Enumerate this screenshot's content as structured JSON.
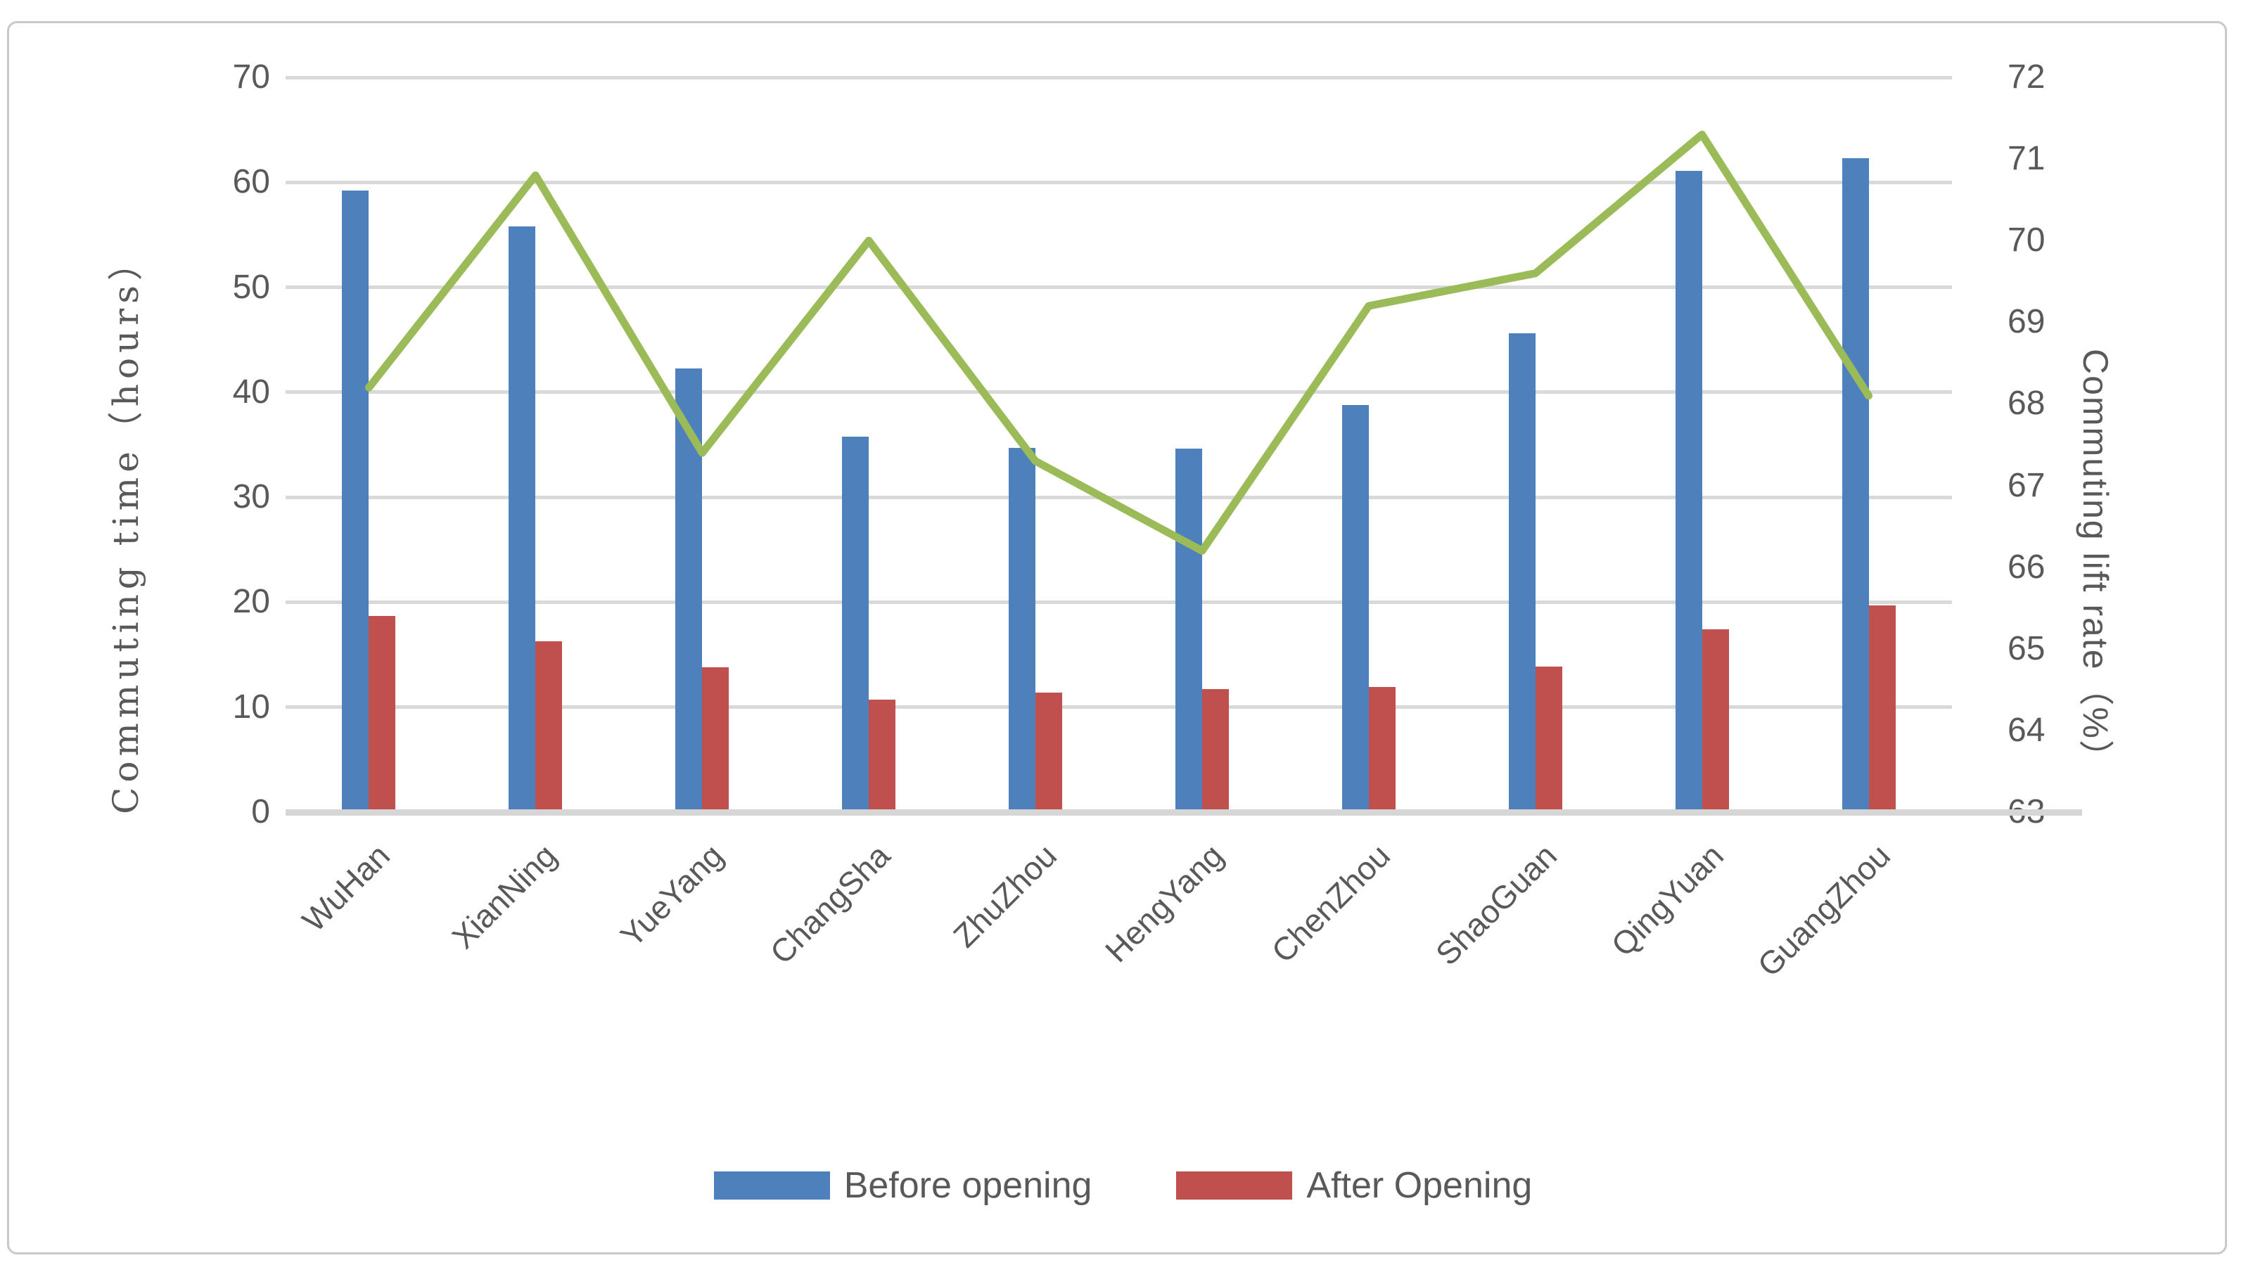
{
  "chart_data": {
    "type": "bar+line",
    "title": "",
    "categories": [
      "WuHan",
      "XianNing",
      "YueYang",
      "ChangSha",
      "ZhuZhou",
      "HengYang",
      "ChenZhou",
      "ShaoGuan",
      "QingYuan",
      "GuangZhou"
    ],
    "series": [
      {
        "name": "Before opening",
        "chart": "bar",
        "axis": "left",
        "color": "#4e81bc",
        "values": [
          59.2,
          55.8,
          42.3,
          35.8,
          34.7,
          34.6,
          38.8,
          45.6,
          61.1,
          62.3
        ]
      },
      {
        "name": "After Opening",
        "chart": "bar",
        "axis": "left",
        "color": "#c0504d",
        "values": [
          18.7,
          16.3,
          13.8,
          10.7,
          11.4,
          11.7,
          11.9,
          13.9,
          17.4,
          19.7
        ]
      },
      {
        "name": "Commuting lift rate",
        "chart": "line",
        "axis": "right",
        "color": "#9bbb59",
        "in_legend": false,
        "values": [
          68.2,
          70.8,
          67.4,
          70.0,
          67.3,
          66.2,
          69.2,
          69.6,
          71.3,
          68.1
        ]
      }
    ],
    "left_axis": {
      "title": "Commuting time（hours）",
      "min": 0,
      "max": 70,
      "step": 10,
      "ticks": [
        70,
        60,
        50,
        40,
        30,
        20,
        10,
        0
      ]
    },
    "right_axis": {
      "title": "Commuting lift rate（%）",
      "min": 63,
      "max": 72,
      "step": 1,
      "ticks": [
        72,
        71,
        70,
        69,
        68,
        67,
        66,
        65,
        64,
        63
      ]
    },
    "legend": {
      "position": "bottom",
      "items": [
        {
          "label": "Before opening",
          "color": "#4e81bc"
        },
        {
          "label": "After Opening",
          "color": "#c0504d"
        }
      ]
    },
    "grid": true,
    "colors": {
      "gridline": "#d9d9d9",
      "axis_line": "#d6d6d6",
      "text": "#595959",
      "frame_border": "#c9c9c9",
      "background": "#ffffff"
    }
  }
}
